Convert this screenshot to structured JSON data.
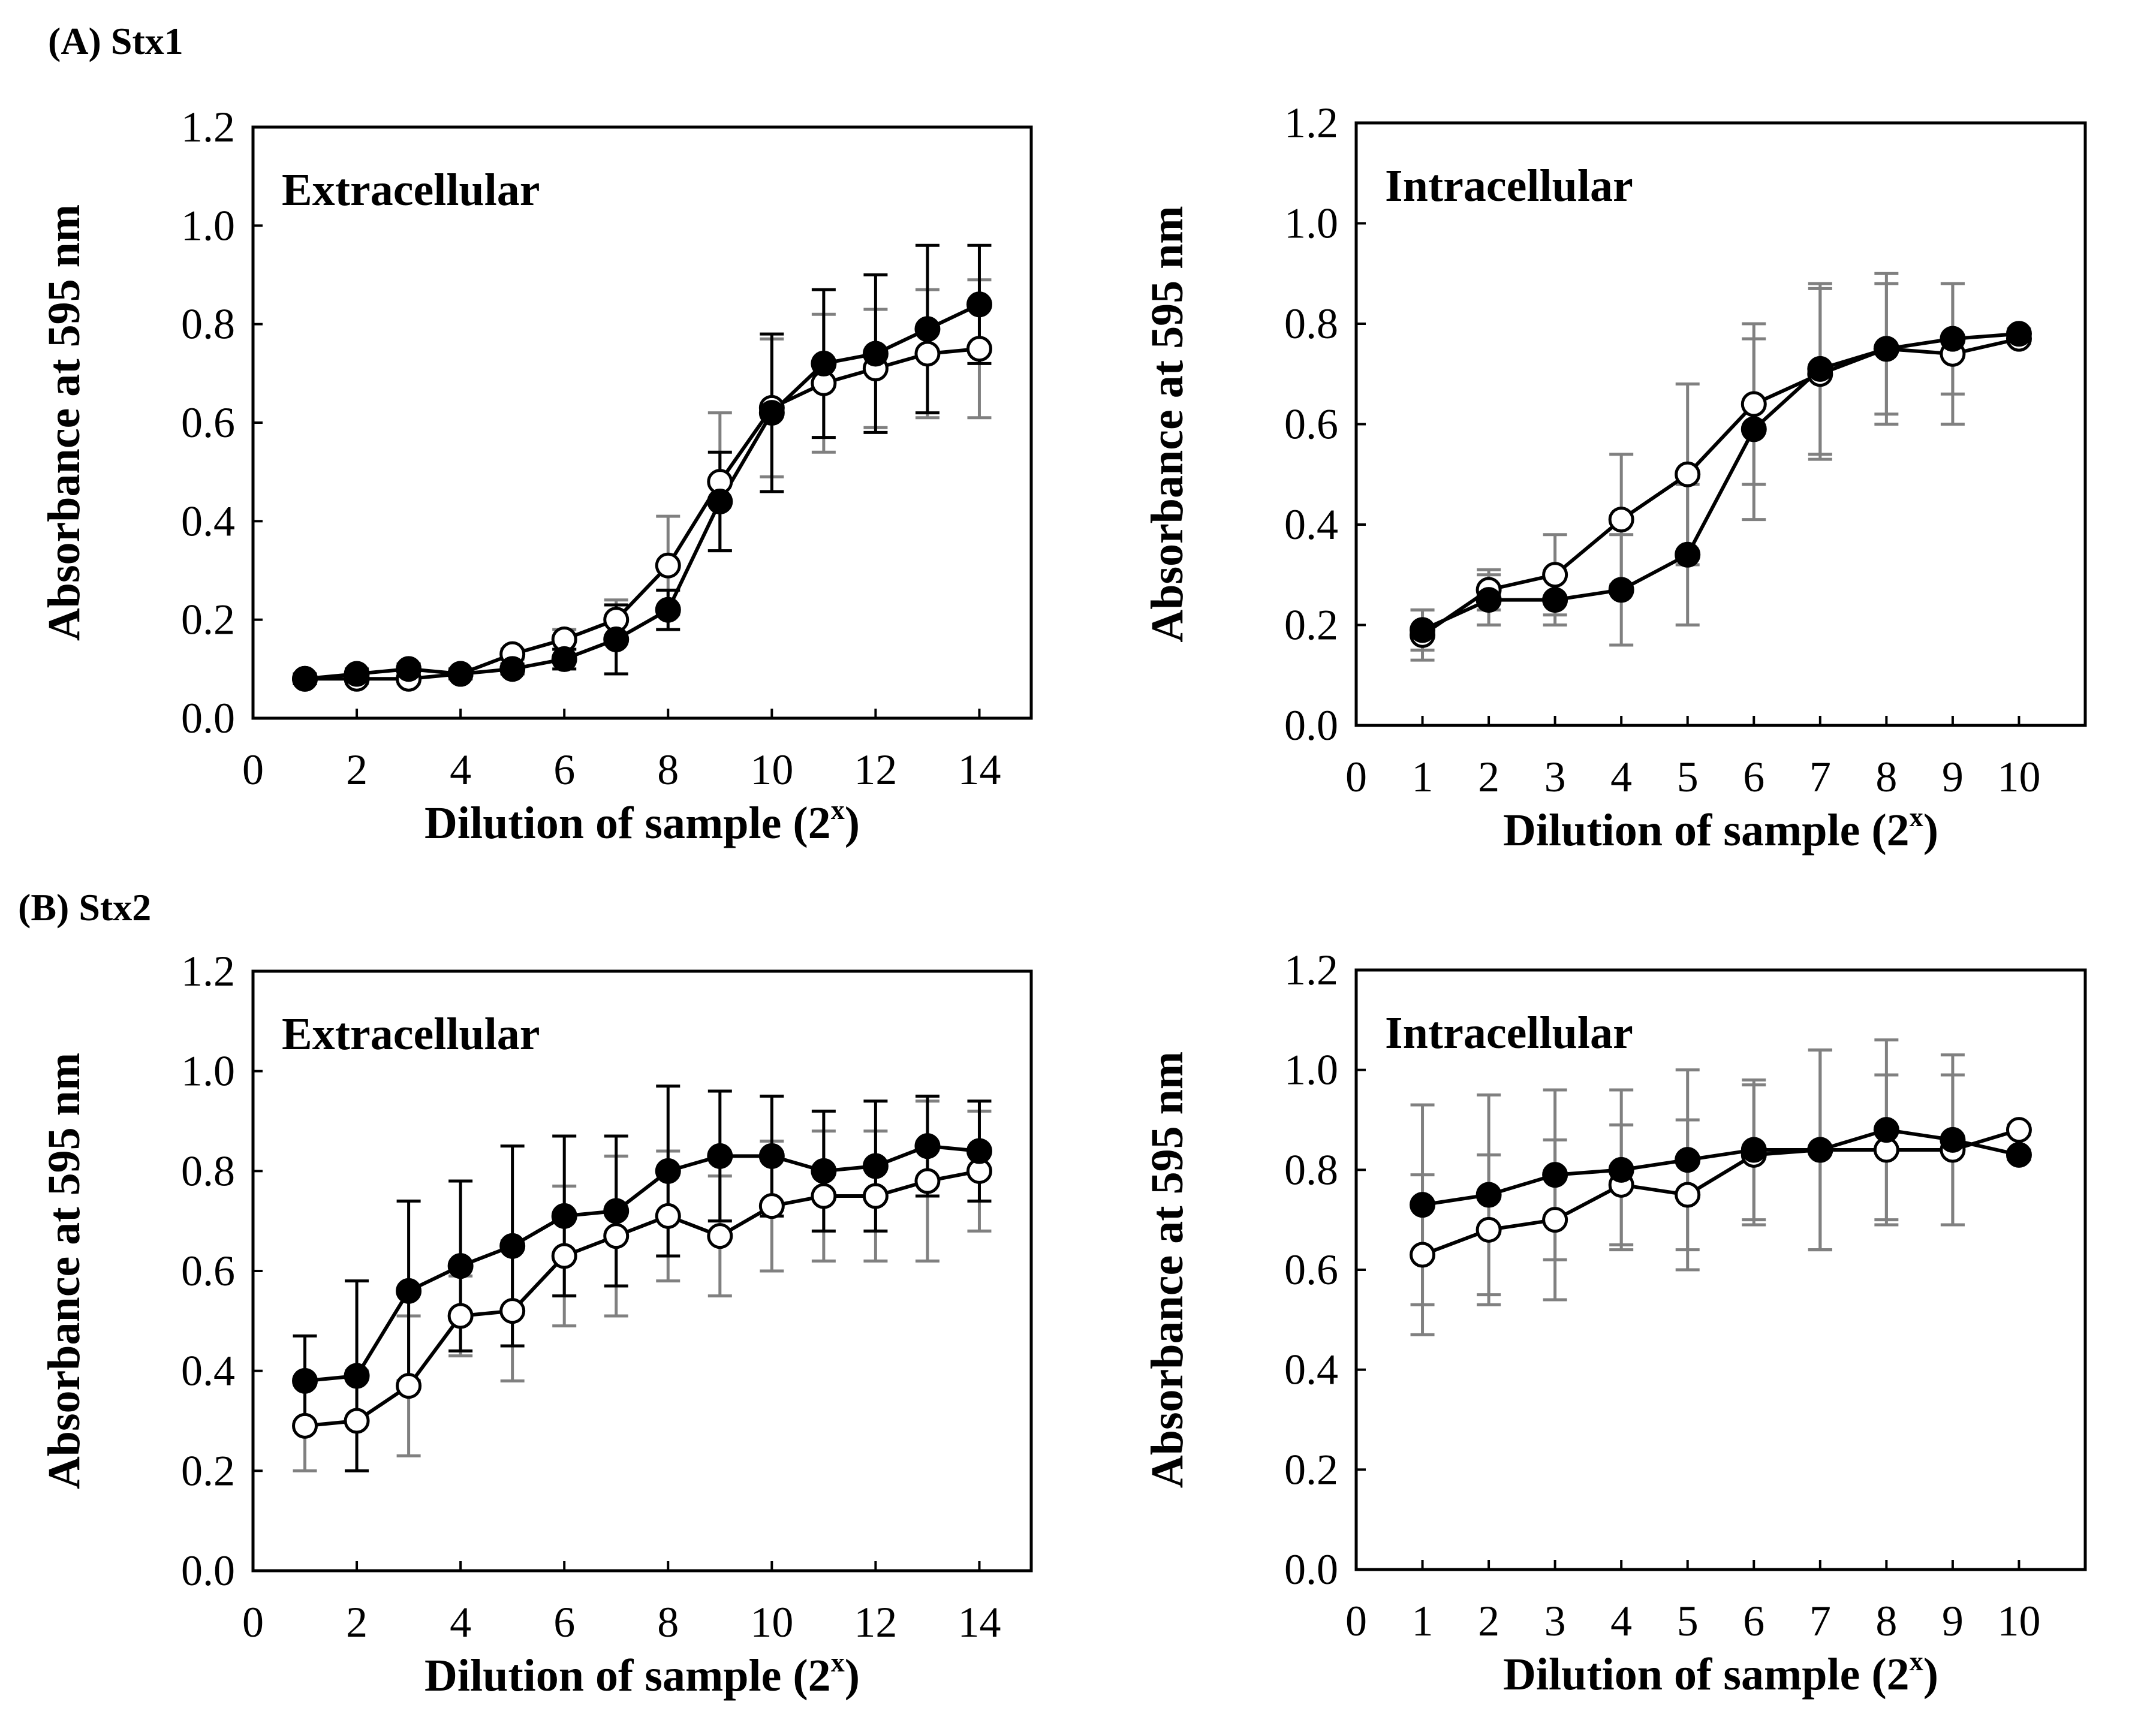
{
  "figure": {
    "section_a_label": "(A) Stx1",
    "section_b_label": "(B) Stx2"
  },
  "chart_data": [
    {
      "id": "a-extracellular",
      "type": "line",
      "section": "(A) Stx1",
      "title": "Extracellular",
      "xlabel": "Dilution of sample (2",
      "xlabel_sup": "x",
      "ylabel": "Absorbance at 595 nm",
      "xlim": [
        0,
        15
      ],
      "ylim": [
        0,
        1.2
      ],
      "xticks": [
        "0",
        "2",
        "4",
        "6",
        "8",
        "10",
        "12",
        "14"
      ],
      "xtick_values": [
        0,
        2,
        4,
        6,
        8,
        10,
        12,
        14
      ],
      "yticks": [
        "0.0",
        "0.2",
        "0.4",
        "0.6",
        "0.8",
        "1.0",
        "1.2"
      ],
      "ytick_values": [
        0,
        0.2,
        0.4,
        0.6,
        0.8,
        1.0,
        1.2
      ],
      "series": [
        {
          "name": "open",
          "marker": "open-circle",
          "error_color": "#808080",
          "x": [
            1,
            2,
            3,
            4,
            5,
            6,
            7,
            8,
            9,
            10,
            11,
            12,
            13,
            14
          ],
          "values": [
            0.08,
            0.08,
            0.08,
            0.09,
            0.13,
            0.16,
            0.2,
            0.31,
            0.48,
            0.63,
            0.68,
            0.71,
            0.74,
            0.75
          ],
          "errors": [
            0.01,
            0.01,
            0.01,
            0.01,
            0.01,
            0.02,
            0.04,
            0.1,
            0.14,
            0.14,
            0.14,
            0.12,
            0.13,
            0.14
          ]
        },
        {
          "name": "filled",
          "marker": "filled-circle",
          "error_color": "#000000",
          "x": [
            1,
            2,
            3,
            4,
            5,
            6,
            7,
            8,
            9,
            10,
            11,
            12,
            13,
            14
          ],
          "values": [
            0.08,
            0.09,
            0.1,
            0.09,
            0.1,
            0.12,
            0.16,
            0.22,
            0.44,
            0.62,
            0.72,
            0.74,
            0.79,
            0.84
          ],
          "errors": [
            0.01,
            0.01,
            0.01,
            0.01,
            0.01,
            0.02,
            0.07,
            0.04,
            0.1,
            0.16,
            0.15,
            0.16,
            0.17,
            0.12
          ]
        }
      ]
    },
    {
      "id": "a-intracellular",
      "type": "line",
      "section": "(A) Stx1",
      "title": "Intracellular",
      "xlabel": "Dilution of sample (2",
      "xlabel_sup": "x",
      "ylabel": "Absorbance at 595 nm",
      "xlim": [
        0,
        11
      ],
      "ylim": [
        0,
        1.2
      ],
      "xticks": [
        "0",
        "1",
        "2",
        "3",
        "4",
        "5",
        "6",
        "7",
        "8",
        "9",
        "10"
      ],
      "xtick_values": [
        0,
        1,
        2,
        3,
        4,
        5,
        6,
        7,
        8,
        9,
        10
      ],
      "yticks": [
        "0.0",
        "0.2",
        "0.4",
        "0.6",
        "0.8",
        "1.0",
        "1.2"
      ],
      "ytick_values": [
        0,
        0.2,
        0.4,
        0.6,
        0.8,
        1.0,
        1.2
      ],
      "series": [
        {
          "name": "open",
          "marker": "open-circle",
          "error_color": "#808080",
          "x": [
            1,
            2,
            3,
            4,
            5,
            6,
            7,
            8,
            9,
            10
          ],
          "values": [
            0.18,
            0.27,
            0.3,
            0.41,
            0.5,
            0.64,
            0.7,
            0.75,
            0.74,
            0.77
          ],
          "errors": [
            0.05,
            0.04,
            0.08,
            0.13,
            0.18,
            0.16,
            0.17,
            0.15,
            0.14,
            0.01
          ]
        },
        {
          "name": "filled",
          "marker": "filled-circle",
          "error_color": "#808080",
          "x": [
            1,
            2,
            3,
            4,
            5,
            6,
            7,
            8,
            9,
            10
          ],
          "values": [
            0.19,
            0.25,
            0.25,
            0.27,
            0.34,
            0.59,
            0.71,
            0.75,
            0.77,
            0.78
          ],
          "errors": [
            0.04,
            0.05,
            0.05,
            0.11,
            0.14,
            0.18,
            0.17,
            0.13,
            0.11,
            0.01
          ]
        }
      ]
    },
    {
      "id": "b-extracellular",
      "type": "line",
      "section": "(B) Stx2",
      "title": "Extracellular",
      "xlabel": "Dilution of sample (2",
      "xlabel_sup": "x",
      "ylabel": "Absorbance at 595 nm",
      "xlim": [
        0,
        15
      ],
      "ylim": [
        0,
        1.2
      ],
      "xticks": [
        "0",
        "2",
        "4",
        "6",
        "8",
        "10",
        "12",
        "14"
      ],
      "xtick_values": [
        0,
        2,
        4,
        6,
        8,
        10,
        12,
        14
      ],
      "yticks": [
        "0.0",
        "0.2",
        "0.4",
        "0.6",
        "0.8",
        "1.0",
        "1.2"
      ],
      "ytick_values": [
        0,
        0.2,
        0.4,
        0.6,
        0.8,
        1.0,
        1.2
      ],
      "series": [
        {
          "name": "open",
          "marker": "open-circle",
          "error_color": "#808080",
          "x": [
            1,
            2,
            3,
            4,
            5,
            6,
            7,
            8,
            9,
            10,
            11,
            12,
            13,
            14
          ],
          "values": [
            0.29,
            0.3,
            0.37,
            0.51,
            0.52,
            0.63,
            0.67,
            0.71,
            0.67,
            0.73,
            0.75,
            0.75,
            0.78,
            0.8
          ],
          "errors": [
            0.09,
            0.1,
            0.14,
            0.08,
            0.14,
            0.14,
            0.16,
            0.13,
            0.12,
            0.13,
            0.13,
            0.13,
            0.16,
            0.12
          ]
        },
        {
          "name": "filled",
          "marker": "filled-circle",
          "error_color": "#000000",
          "x": [
            1,
            2,
            3,
            4,
            5,
            6,
            7,
            8,
            9,
            10,
            11,
            12,
            13,
            14
          ],
          "values": [
            0.38,
            0.39,
            0.56,
            0.61,
            0.65,
            0.71,
            0.72,
            0.8,
            0.83,
            0.83,
            0.8,
            0.81,
            0.85,
            0.84
          ],
          "errors": [
            0.09,
            0.19,
            0.18,
            0.17,
            0.2,
            0.16,
            0.15,
            0.17,
            0.13,
            0.12,
            0.12,
            0.13,
            0.1,
            0.1
          ]
        }
      ]
    },
    {
      "id": "b-intracellular",
      "type": "line",
      "section": "(B) Stx2",
      "title": "Intracellular",
      "xlabel": "Dilution of sample (2",
      "xlabel_sup": "x",
      "ylabel": "Absorbance at 595 nm",
      "xlim": [
        0,
        11
      ],
      "ylim": [
        0,
        1.2
      ],
      "xticks": [
        "0",
        "1",
        "2",
        "3",
        "4",
        "5",
        "6",
        "7",
        "8",
        "9",
        "10"
      ],
      "xtick_values": [
        0,
        1,
        2,
        3,
        4,
        5,
        6,
        7,
        8,
        9,
        10
      ],
      "yticks": [
        "0.0",
        "0.2",
        "0.4",
        "0.6",
        "0.8",
        "1.0",
        "1.2"
      ],
      "ytick_values": [
        0,
        0.2,
        0.4,
        0.6,
        0.8,
        1.0,
        1.2
      ],
      "series": [
        {
          "name": "open",
          "marker": "open-circle",
          "error_color": "#808080",
          "x": [
            1,
            2,
            3,
            4,
            5,
            6,
            7,
            8,
            9,
            10
          ],
          "values": [
            0.63,
            0.68,
            0.7,
            0.77,
            0.75,
            0.83,
            0.84,
            0.84,
            0.84,
            0.88
          ],
          "errors": [
            0.16,
            0.15,
            0.16,
            0.12,
            0.15,
            0.14,
            0.2,
            0.15,
            0.15,
            0.01
          ]
        },
        {
          "name": "filled",
          "marker": "filled-circle",
          "error_color": "#808080",
          "x": [
            1,
            2,
            3,
            4,
            5,
            6,
            7,
            8,
            9,
            10
          ],
          "values": [
            0.73,
            0.75,
            0.79,
            0.8,
            0.82,
            0.84,
            0.84,
            0.88,
            0.86,
            0.83
          ],
          "errors": [
            0.2,
            0.2,
            0.17,
            0.16,
            0.18,
            0.14,
            0.2,
            0.18,
            0.17,
            0.01
          ]
        }
      ]
    }
  ]
}
